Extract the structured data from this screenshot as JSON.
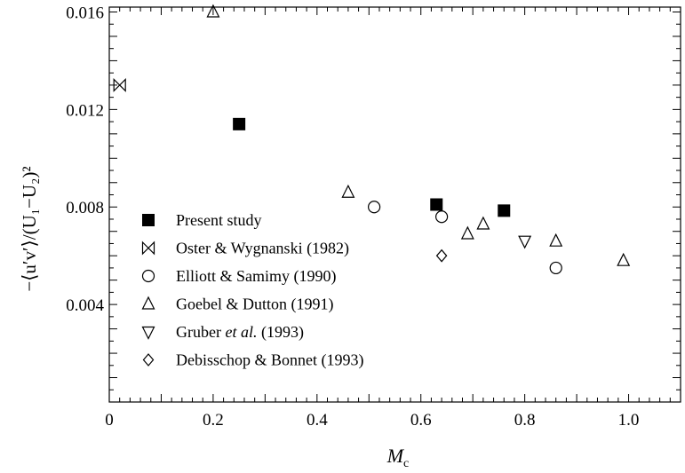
{
  "chart_data": {
    "type": "scatter",
    "title": "",
    "xlabel": "M",
    "xlabel_sub": "c",
    "ylabel": "−⟨u′v′⟩/(U₁−U₂)²",
    "xlim": [
      0,
      1.1
    ],
    "ylim": [
      0,
      0.0162
    ],
    "xticks": [
      0,
      0.2,
      0.4,
      0.6,
      0.8,
      1.0
    ],
    "xtick_labels": [
      "0",
      "0.2",
      "0.4",
      "0.6",
      "0.8",
      "1.0"
    ],
    "yticks": [
      0.004,
      0.008,
      0.012,
      0.016
    ],
    "ytick_labels": [
      "0.004",
      "0.008",
      "0.012",
      "0.016"
    ],
    "grid": false,
    "legend_position": "lower-left",
    "series": [
      {
        "name": "Present study",
        "marker": "filled-square",
        "points": [
          [
            0.25,
            0.0114
          ],
          [
            0.63,
            0.0081
          ],
          [
            0.76,
            0.00785
          ]
        ]
      },
      {
        "name": "Oster & Wygnanski (1982)",
        "marker": "bowtie",
        "points": [
          [
            0.02,
            0.013
          ]
        ]
      },
      {
        "name": "Elliott & Samimy (1990)",
        "marker": "circle",
        "points": [
          [
            0.51,
            0.008
          ],
          [
            0.64,
            0.0076
          ],
          [
            0.86,
            0.0055
          ]
        ]
      },
      {
        "name": "Goebel & Dutton (1991)",
        "marker": "triangle-up",
        "points": [
          [
            0.2,
            0.016
          ],
          [
            0.46,
            0.0086
          ],
          [
            0.69,
            0.0069
          ],
          [
            0.72,
            0.0073
          ],
          [
            0.86,
            0.0066
          ],
          [
            0.99,
            0.0058
          ]
        ]
      },
      {
        "name": "Gruber et al. (1993)",
        "name_pre": "Gruber ",
        "name_italic": "et al.",
        "name_post": " (1993)",
        "marker": "triangle-down",
        "points": [
          [
            0.8,
            0.0066
          ]
        ]
      },
      {
        "name": "Debisschop & Bonnet (1993)",
        "marker": "diamond",
        "points": [
          [
            0.64,
            0.006
          ]
        ]
      }
    ]
  }
}
